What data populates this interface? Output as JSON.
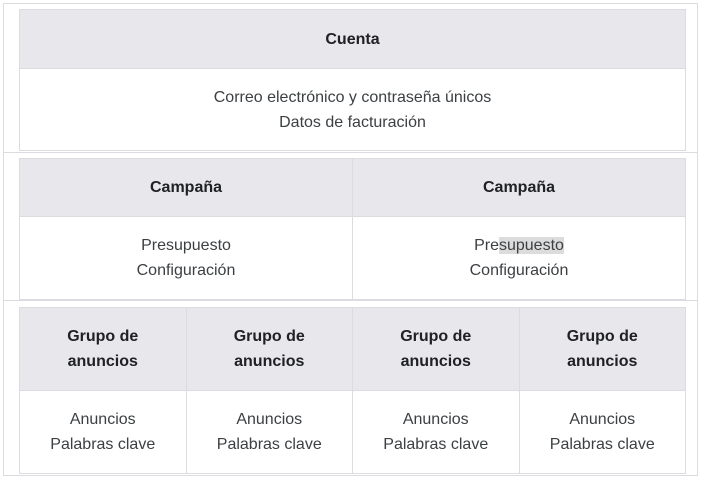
{
  "account": {
    "header": "Cuenta",
    "lines": [
      "Correo electrónico y contraseña únicos",
      "Datos de facturación"
    ]
  },
  "campaigns": [
    {
      "header": "Campaña",
      "lines": [
        "Presupuesto",
        "Configuración"
      ]
    },
    {
      "header": "Campaña",
      "lines": [
        "Presupuesto",
        "Configuración"
      ],
      "selected_text": "supuesto"
    }
  ],
  "ad_groups": [
    {
      "header_1": "Grupo de",
      "header_2": "anuncios",
      "lines": [
        "Anuncios",
        "Palabras clave"
      ]
    },
    {
      "header_1": "Grupo de",
      "header_2": "anuncios",
      "lines": [
        "Anuncios",
        "Palabras clave"
      ]
    },
    {
      "header_1": "Grupo de",
      "header_2": "anuncios",
      "lines": [
        "Anuncios",
        "Palabras clave"
      ]
    },
    {
      "header_1": "Grupo de",
      "header_2": "anuncios",
      "lines": [
        "Anuncios",
        "Palabras clave"
      ]
    }
  ],
  "colors": {
    "header_bg": "#e8e8ec",
    "border": "#dadce0",
    "selection": "#dcdcdc"
  }
}
